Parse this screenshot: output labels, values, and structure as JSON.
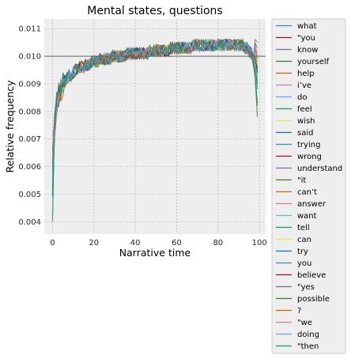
{
  "chart_data": {
    "type": "line",
    "title": "Mental states, questions",
    "xlabel": "Narrative time",
    "ylabel": "Relative frequency",
    "xlim": [
      -4,
      103
    ],
    "ylim": [
      0.00355,
      0.01135
    ],
    "xticks": [
      0,
      20,
      40,
      60,
      80,
      100
    ],
    "xtick_labels": [
      "0",
      "20",
      "40",
      "60",
      "80",
      "100"
    ],
    "yticks": [
      0.004,
      0.005,
      0.006,
      0.007,
      0.008,
      0.009,
      0.01,
      0.011
    ],
    "ytick_labels": [
      "0.004",
      "0.005",
      "0.006",
      "0.007",
      "0.008",
      "0.009",
      "0.010",
      "0.011"
    ],
    "grid": true,
    "reference_line": 0.01,
    "legend_position": "outside-right",
    "x": [
      0,
      1,
      2,
      3,
      4,
      5,
      6,
      7,
      8,
      9,
      10,
      11,
      12,
      13,
      14,
      15,
      16,
      17,
      18,
      19,
      20,
      21,
      22,
      23,
      24,
      25,
      26,
      27,
      28,
      29,
      30,
      31,
      32,
      33,
      34,
      35,
      36,
      37,
      38,
      39,
      40,
      41,
      42,
      43,
      44,
      45,
      46,
      47,
      48,
      49,
      50,
      51,
      52,
      53,
      54,
      55,
      56,
      57,
      58,
      59,
      60,
      61,
      62,
      63,
      64,
      65,
      66,
      67,
      68,
      69,
      70,
      71,
      72,
      73,
      74,
      75,
      76,
      77,
      78,
      79,
      80,
      81,
      82,
      83,
      84,
      85,
      86,
      87,
      88,
      89,
      90,
      91,
      92,
      93,
      94,
      95,
      96,
      97,
      98,
      99
    ],
    "trend": [
      0.005,
      0.0075,
      0.0083,
      0.0086,
      0.0088,
      0.009,
      0.0091,
      0.0092,
      0.0093,
      0.0093,
      0.0094,
      0.0095,
      0.0095,
      0.0096,
      0.0096,
      0.0096,
      0.0097,
      0.0097,
      0.0097,
      0.0098,
      0.0098,
      0.0098,
      0.0098,
      0.0099,
      0.0099,
      0.0099,
      0.0099,
      0.0099,
      0.0099,
      0.01,
      0.01,
      0.01,
      0.01,
      0.01,
      0.01,
      0.01,
      0.0101,
      0.0101,
      0.0101,
      0.0101,
      0.0101,
      0.0101,
      0.0101,
      0.0101,
      0.0101,
      0.0101,
      0.0101,
      0.0102,
      0.0102,
      0.0102,
      0.0102,
      0.0102,
      0.0102,
      0.0102,
      0.0102,
      0.0102,
      0.0102,
      0.0103,
      0.0103,
      0.0103,
      0.0103,
      0.0103,
      0.0103,
      0.0103,
      0.0103,
      0.0103,
      0.0103,
      0.0103,
      0.0104,
      0.0104,
      0.0104,
      0.0104,
      0.0104,
      0.0104,
      0.0104,
      0.0104,
      0.0104,
      0.0104,
      0.0104,
      0.0104,
      0.0104,
      0.0104,
      0.0104,
      0.0104,
      0.0104,
      0.0104,
      0.0104,
      0.0104,
      0.0104,
      0.0104,
      0.0104,
      0.0104,
      0.0104,
      0.0103,
      0.0103,
      0.0102,
      0.0101,
      0.0099,
      0.0097,
      0.0094
    ],
    "series": [
      {
        "name": "what",
        "color": "#348ABD",
        "start": 0.0042,
        "end": 0.0092
      },
      {
        "name": "\"you",
        "color": "#A60628",
        "start": 0.0053,
        "end": 0.0096
      },
      {
        "name": "know",
        "color": "#7A68A6",
        "start": 0.005,
        "end": 0.0098
      },
      {
        "name": "yourself",
        "color": "#467821",
        "start": 0.0063,
        "end": 0.0103
      },
      {
        "name": "help",
        "color": "#D55E00",
        "start": 0.0066,
        "end": 0.0097
      },
      {
        "name": "i’ve",
        "color": "#CC79A7",
        "start": 0.0071,
        "end": 0.0099
      },
      {
        "name": "do",
        "color": "#56B4E9",
        "start": 0.0055,
        "end": 0.0091
      },
      {
        "name": "feel",
        "color": "#009E73",
        "start": 0.0062,
        "end": 0.0083
      },
      {
        "name": "wish",
        "color": "#F0E442",
        "start": 0.0058,
        "end": 0.01
      },
      {
        "name": "said",
        "color": "#0072B2",
        "start": 0.0049,
        "end": 0.0095
      },
      {
        "name": "trying",
        "color": "#348ABD",
        "start": 0.0061,
        "end": 0.0098
      },
      {
        "name": "wrong",
        "color": "#A60628",
        "start": 0.0057,
        "end": 0.0094
      },
      {
        "name": "understand",
        "color": "#7A68A6",
        "start": 0.0064,
        "end": 0.0102
      },
      {
        "name": "\"it",
        "color": "#467821",
        "start": 0.0052,
        "end": 0.009
      },
      {
        "name": "can’t",
        "color": "#D55E00",
        "start": 0.006,
        "end": 0.0096
      },
      {
        "name": "answer",
        "color": "#CC79A7",
        "start": 0.0067,
        "end": 0.0101
      },
      {
        "name": "want",
        "color": "#56B4E9",
        "start": 0.0054,
        "end": 0.0093
      },
      {
        "name": "tell",
        "color": "#009E73",
        "start": 0.004,
        "end": 0.0082
      },
      {
        "name": "can",
        "color": "#F0E442",
        "start": 0.0063,
        "end": 0.0097
      },
      {
        "name": "try",
        "color": "#0072B2",
        "start": 0.0059,
        "end": 0.0095
      },
      {
        "name": "you",
        "color": "#348ABD",
        "start": 0.0056,
        "end": 0.0099
      },
      {
        "name": "believe",
        "color": "#A60628",
        "start": 0.0061,
        "end": 0.0094
      },
      {
        "name": "\"yes",
        "color": "#7A68A6",
        "start": 0.0065,
        "end": 0.0105
      },
      {
        "name": "possible",
        "color": "#467821",
        "start": 0.0058,
        "end": 0.0078
      },
      {
        "name": "?",
        "color": "#D55E00",
        "start": 0.0062,
        "end": 0.0096
      },
      {
        "name": "\"we",
        "color": "#CC79A7",
        "start": 0.0068,
        "end": 0.01
      },
      {
        "name": "doing",
        "color": "#56B4E9",
        "start": 0.0057,
        "end": 0.0092
      },
      {
        "name": "\"then",
        "color": "#009E73",
        "start": 0.0051,
        "end": 0.0088
      }
    ]
  }
}
